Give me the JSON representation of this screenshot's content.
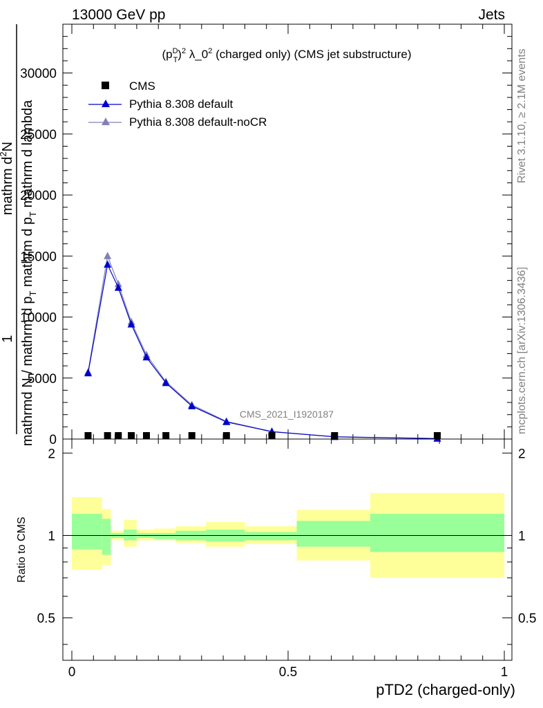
{
  "header": {
    "left": "13000 GeV pp",
    "right": "Jets"
  },
  "side_labels": {
    "rivet": "Rivet 3.1.10, ≥ 2.1M events",
    "mcplots": "mcplots.cern.ch [arXiv:1306.3436]"
  },
  "watermark": "CMS_2021_I1920187",
  "chart_data": [
    {
      "type": "line",
      "title": "(p_T^D)^2 λ_0^2 (charged only) (CMS jet substructure)",
      "ylabel": {
        "num": "mathrm d^{2}N",
        "den": "mathrm d p_T mathrm d lambda",
        "prefix_num": "1",
        "prefix_den": "mathrm d N / mathrm d p_T"
      },
      "xlim": [
        0,
        1
      ],
      "ylim": [
        0,
        34000
      ],
      "yticks": [
        0,
        5000,
        10000,
        15000,
        20000,
        25000,
        30000
      ],
      "ytick_labels": [
        "0",
        "5000",
        "10000",
        "15000",
        "20000",
        "25000",
        "30000"
      ],
      "legend": {
        "placement": "top-left"
      },
      "x": [
        0.0375,
        0.0825,
        0.1075,
        0.1375,
        0.1725,
        0.2175,
        0.2775,
        0.3575,
        0.4625,
        0.6075,
        0.845
      ],
      "series": [
        {
          "name": "CMS",
          "color": "#000000",
          "marker": "square",
          "values": [
            90,
            100,
            95,
            85,
            75,
            60,
            45,
            30,
            20,
            8,
            2
          ]
        },
        {
          "name": "Pythia 8.308 default",
          "color": "#0000cc",
          "marker": "triangle",
          "values": [
            5400,
            14300,
            12400,
            9400,
            6700,
            4600,
            2700,
            1400,
            600,
            180,
            40
          ]
        },
        {
          "name": "Pythia 8.308 default-noCR",
          "color": "#8080b8",
          "marker": "triangle",
          "values": [
            5500,
            15000,
            12700,
            9600,
            6900,
            4700,
            2800,
            1450,
            620,
            190,
            45
          ]
        }
      ]
    },
    {
      "type": "area",
      "ylabel": "Ratio to CMS",
      "xlabel": "pTD2 (charged-only)",
      "xlim": [
        0,
        1
      ],
      "ylim": [
        0.35,
        2.25
      ],
      "xticks": [
        0,
        0.5,
        1
      ],
      "xtick_labels": [
        "0",
        "0.5",
        "1"
      ],
      "yticks": [
        0.5,
        1,
        2
      ],
      "ytick_labels": [
        "0.5",
        "1",
        "2"
      ],
      "reference_line": 1,
      "bins": [
        {
          "lo": 0.0,
          "hi": 0.07,
          "inner": [
            0.89,
            1.2
          ],
          "outer": [
            0.75,
            1.38
          ]
        },
        {
          "lo": 0.07,
          "hi": 0.09,
          "inner": [
            0.85,
            1.15
          ],
          "outer": [
            0.78,
            1.25
          ]
        },
        {
          "lo": 0.09,
          "hi": 0.12,
          "inner": [
            0.98,
            1.02
          ],
          "outer": [
            0.96,
            1.04
          ]
        },
        {
          "lo": 0.12,
          "hi": 0.15,
          "inner": [
            0.96,
            1.05
          ],
          "outer": [
            0.91,
            1.14
          ]
        },
        {
          "lo": 0.15,
          "hi": 0.19,
          "inner": [
            0.98,
            1.02
          ],
          "outer": [
            0.96,
            1.05
          ]
        },
        {
          "lo": 0.19,
          "hi": 0.24,
          "inner": [
            0.97,
            1.02
          ],
          "outer": [
            0.96,
            1.06
          ]
        },
        {
          "lo": 0.24,
          "hi": 0.31,
          "inner": [
            0.96,
            1.04
          ],
          "outer": [
            0.94,
            1.08
          ]
        },
        {
          "lo": 0.31,
          "hi": 0.4,
          "inner": [
            0.95,
            1.05
          ],
          "outer": [
            0.91,
            1.12
          ]
        },
        {
          "lo": 0.4,
          "hi": 0.52,
          "inner": [
            0.96,
            1.03
          ],
          "outer": [
            0.93,
            1.08
          ]
        },
        {
          "lo": 0.52,
          "hi": 0.69,
          "inner": [
            0.91,
            1.13
          ],
          "outer": [
            0.81,
            1.24
          ]
        },
        {
          "lo": 0.69,
          "hi": 1.0,
          "inner": [
            0.87,
            1.2
          ],
          "outer": [
            0.7,
            1.43
          ]
        }
      ],
      "colors": {
        "inner": "#99ff99",
        "outer": "#ffff99"
      }
    }
  ]
}
